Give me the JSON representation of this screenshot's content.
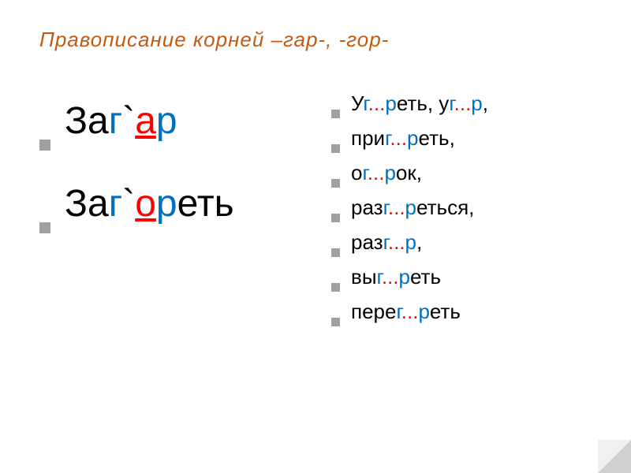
{
  "slide": {
    "title_parts": {
      "prefix": "Правописание     корней        ",
      "root1": "–гар-,  -гор-"
    },
    "title_color": "#c55a11",
    "title_fontsize": 26,
    "background_color": "#ffffff"
  },
  "examples": [
    {
      "segments": [
        {
          "text": "За",
          "color": "black"
        },
        {
          "text": "г",
          "color": "blue"
        },
        {
          "text": "`",
          "color": "black"
        },
        {
          "text": "а",
          "color": "red-underline"
        },
        {
          "text": "р",
          "color": "blue"
        }
      ]
    },
    {
      "segments": [
        {
          "text": "За",
          "color": "black"
        },
        {
          "text": "г",
          "color": "blue"
        },
        {
          "text": "`",
          "color": "black"
        },
        {
          "text": "о",
          "color": "red-underline"
        },
        {
          "text": "р",
          "color": "blue"
        },
        {
          "text": "еть",
          "color": "black"
        }
      ]
    }
  ],
  "exercises": [
    {
      "segments": [
        {
          "text": "У",
          "color": "black"
        },
        {
          "text": "г",
          "color": "blue"
        },
        {
          "text": "...",
          "color": "red"
        },
        {
          "text": "р",
          "color": "blue"
        },
        {
          "text": "еть, у",
          "color": "black"
        },
        {
          "text": "г",
          "color": "blue"
        },
        {
          "text": "...",
          "color": "red"
        },
        {
          "text": "р",
          "color": "blue"
        },
        {
          "text": ",",
          "color": "black"
        }
      ]
    },
    {
      "segments": [
        {
          "text": "при",
          "color": "black"
        },
        {
          "text": "г",
          "color": "blue"
        },
        {
          "text": "...",
          "color": "red"
        },
        {
          "text": "р",
          "color": "blue"
        },
        {
          "text": "еть,",
          "color": "black"
        }
      ]
    },
    {
      "segments": [
        {
          "text": "о",
          "color": "black"
        },
        {
          "text": "г",
          "color": "blue"
        },
        {
          "text": "...",
          "color": "red"
        },
        {
          "text": "р",
          "color": "blue"
        },
        {
          "text": "ок,",
          "color": "black"
        }
      ]
    },
    {
      "segments": [
        {
          "text": "раз",
          "color": "black"
        },
        {
          "text": "г",
          "color": "blue"
        },
        {
          "text": "...",
          "color": "red"
        },
        {
          "text": "р",
          "color": "blue"
        },
        {
          "text": "еться,",
          "color": "black"
        }
      ]
    },
    {
      "segments": [
        {
          "text": "раз",
          "color": "black"
        },
        {
          "text": "г",
          "color": "blue"
        },
        {
          "text": "...",
          "color": "red"
        },
        {
          "text": "р",
          "color": "blue"
        },
        {
          "text": ",",
          "color": "black"
        }
      ]
    },
    {
      "segments": [
        {
          "text": "вы",
          "color": "black"
        },
        {
          "text": "г",
          "color": "blue"
        },
        {
          "text": "...",
          "color": "red"
        },
        {
          "text": "р",
          "color": "blue"
        },
        {
          "text": "еть",
          "color": "black"
        }
      ]
    },
    {
      "segments": [
        {
          "text": "пере",
          "color": "black"
        },
        {
          "text": "г",
          "color": "blue"
        },
        {
          "text": "...",
          "color": "red"
        },
        {
          "text": "р",
          "color": "blue"
        },
        {
          "text": "еть",
          "color": "black"
        }
      ]
    }
  ],
  "colors": {
    "title": "#c55a11",
    "red": "#ff0000",
    "blue": "#0070c0",
    "black": "#000000",
    "bullet": "#a0a0a0",
    "background": "#ffffff"
  },
  "typography": {
    "title_fontsize": 26,
    "example_fontsize": 48,
    "exercise_fontsize": 26,
    "font_family": "Arial"
  }
}
